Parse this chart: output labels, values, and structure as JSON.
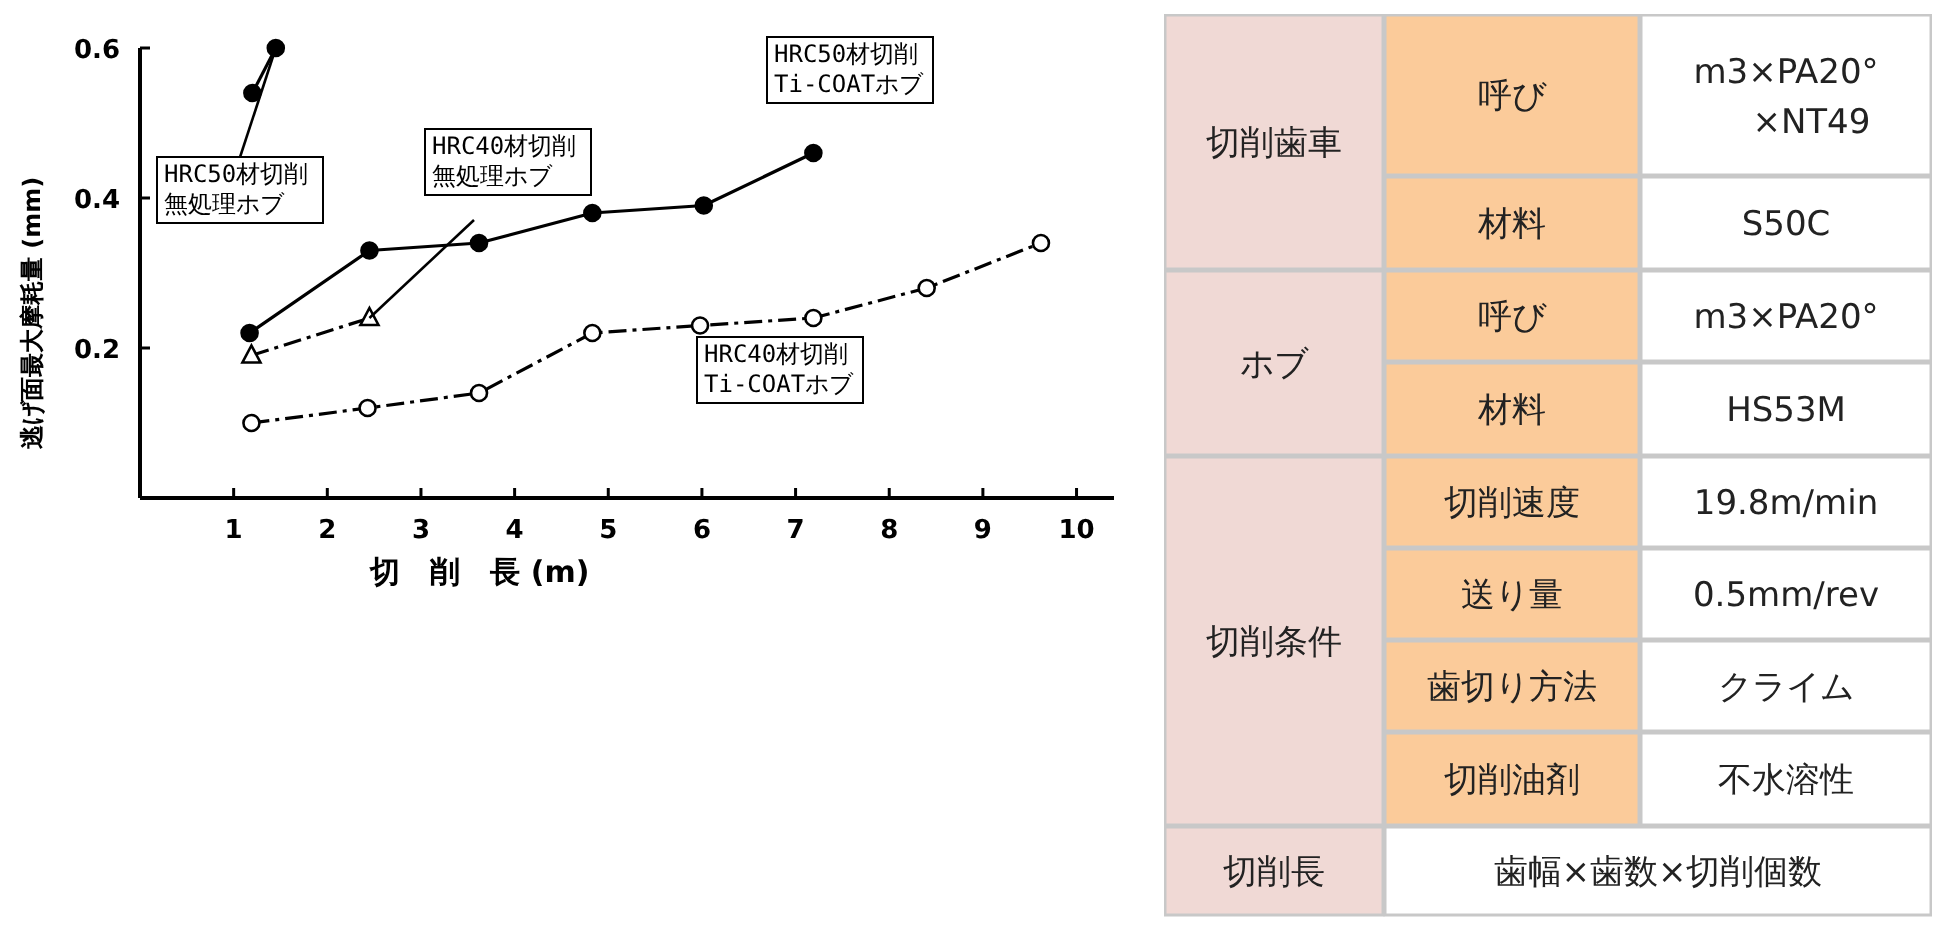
{
  "chart_data": [
    {
      "type": "line",
      "xlabel": "切　削　長 (m)",
      "ylabel": "逃げ面最大摩耗量 (mm)",
      "xlim": [
        0,
        10.4
      ],
      "ylim": [
        0,
        0.6
      ],
      "xticks": [
        1,
        2,
        3,
        4,
        5,
        6,
        7,
        8,
        9,
        10
      ],
      "yticks": [
        0.2,
        0.4,
        0.6
      ],
      "grid": false,
      "series": [
        {
          "name": "HRC50材切削無処理ホブ",
          "color": "#000000",
          "marker": "circle",
          "line_style": "solid",
          "x": [
            1.2,
            1.45
          ],
          "values": [
            0.54,
            0.6
          ]
        },
        {
          "name": "HRC50材切削\nTi-COATホブ",
          "color": "#000000",
          "marker": "circle",
          "line_style": "solid",
          "x": [
            1.17,
            2.45,
            3.62,
            4.83,
            6.02,
            7.19
          ],
          "values": [
            0.22,
            0.33,
            0.34,
            0.38,
            0.39,
            0.46
          ]
        },
        {
          "name": "HRC40材切削無処理ホブ",
          "color": "#000000",
          "marker": "triangle",
          "line_style": "dashed",
          "x": [
            1.19,
            2.45
          ],
          "values": [
            0.19,
            0.24
          ]
        },
        {
          "name": "HRC40材切削\nTi-COATホブ",
          "color": "#000000",
          "marker": "circle",
          "line_style": "dashed",
          "x": [
            1.19,
            2.43,
            3.62,
            4.83,
            5.98,
            7.19,
            8.4,
            9.62
          ],
          "values": [
            0.1,
            0.12,
            0.14,
            0.22,
            0.23,
            0.24,
            0.28,
            0.34
          ]
        }
      ]
    },
    {
      "type": "other",
      "annotations": [
        "切削歯車",
        "呼び",
        "m3×PA20° ×NT49",
        "材料",
        "S50C",
        "ホブ",
        "呼び",
        "m3×PA20°",
        "材料",
        "HS53M",
        "切削条件",
        "切削速度",
        "19.8m/min",
        "送り量",
        "0.5mm/rev",
        "歯切り方法",
        "クライム",
        "切削油剤",
        "不水溶性",
        "切削長",
        "歯幅×歯数×切削個数"
      ]
    }
  ]
}
